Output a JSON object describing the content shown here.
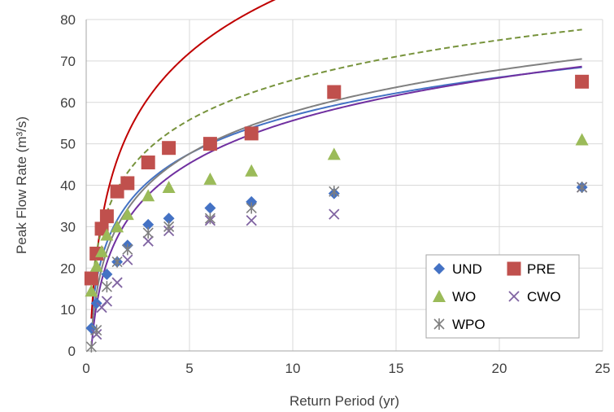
{
  "chart_data": {
    "type": "scatter",
    "title": "",
    "xlabel": "Return Period (yr)",
    "ylabel": "Peak Flow Rate (m³/s)",
    "xlim": [
      0,
      25
    ],
    "ylim": [
      0,
      80
    ],
    "x_ticks": [
      "0",
      "5",
      "10",
      "15",
      "20",
      "25"
    ],
    "y_ticks": [
      "0",
      "10",
      "20",
      "30",
      "40",
      "50",
      "60",
      "70",
      "80"
    ],
    "grid": true,
    "legend_position": "bottom-right",
    "series": [
      {
        "name": "UND",
        "marker": "diamond",
        "color": "#4472c4",
        "x": [
          0.25,
          0.5,
          1,
          1.5,
          2,
          3,
          4,
          6,
          8,
          12,
          24
        ],
        "y": [
          5.5,
          11.5,
          18.5,
          21.5,
          25.5,
          30.5,
          32,
          34.5,
          36,
          38,
          39.5
        ],
        "trend": {
          "style": "solid",
          "color": "#4472c4",
          "a": 26.2,
          "b": 13.3
        }
      },
      {
        "name": "PRE",
        "marker": "square",
        "color": "#c0504d",
        "x": [
          0.25,
          0.5,
          0.75,
          1,
          1.5,
          2,
          3,
          4,
          6,
          8,
          12,
          24
        ],
        "y": [
          17.5,
          23.5,
          29.5,
          32.5,
          38.5,
          40.5,
          45.5,
          49,
          50,
          52.5,
          62.5,
          65
        ],
        "trend": {
          "style": "solid",
          "color": "#c00000",
          "a": 37.5,
          "b": 21.4
        }
      },
      {
        "name": "WO",
        "marker": "triangle",
        "color": "#9bbb59",
        "x": [
          0.25,
          0.5,
          0.75,
          1,
          1.5,
          2,
          3,
          4,
          6,
          8,
          12,
          24
        ],
        "y": [
          14.5,
          20.5,
          24,
          28,
          30,
          33,
          37.5,
          39.5,
          41.5,
          43.5,
          47.5,
          51
        ],
        "trend": {
          "style": "dashed",
          "color": "#77933c",
          "a": 33.4,
          "b": 13.9
        }
      },
      {
        "name": "CWO",
        "marker": "x",
        "color": "#8064a2",
        "x": [
          0.5,
          0.75,
          1,
          1.5,
          2,
          3,
          4,
          6,
          8,
          12,
          24
        ],
        "y": [
          4,
          10.5,
          12,
          16.5,
          22,
          26.5,
          29,
          31.5,
          31.5,
          33,
          39.5
        ],
        "trend": {
          "style": "solid",
          "color": "#7030a0",
          "a": 21.3,
          "b": 14.9
        }
      },
      {
        "name": "WPO",
        "marker": "star",
        "color": "#7f7f7f",
        "x": [
          0.25,
          0.5,
          1,
          1.5,
          2,
          3,
          4,
          6,
          8,
          12,
          24
        ],
        "y": [
          1,
          5,
          15.5,
          21.5,
          24.5,
          28.5,
          30,
          32,
          34.5,
          38.5,
          39.5
        ],
        "trend": {
          "style": "solid",
          "color": "#808080",
          "a": 24.1,
          "b": 14.6
        }
      }
    ]
  }
}
